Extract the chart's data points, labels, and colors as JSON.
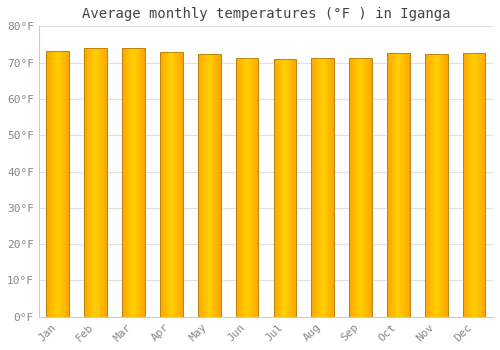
{
  "title": "Average monthly temperatures (°F ) in Iganga",
  "categories": [
    "Jan",
    "Feb",
    "Mar",
    "Apr",
    "May",
    "Jun",
    "Jul",
    "Aug",
    "Sep",
    "Oct",
    "Nov",
    "Dec"
  ],
  "values": [
    73.2,
    73.9,
    73.9,
    73.0,
    72.3,
    71.2,
    71.1,
    71.3,
    71.2,
    72.7,
    72.5,
    72.7
  ],
  "ylim": [
    0,
    80
  ],
  "yticks": [
    0,
    10,
    20,
    30,
    40,
    50,
    60,
    70,
    80
  ],
  "ytick_labels": [
    "0°F",
    "10°F",
    "20°F",
    "30°F",
    "40°F",
    "50°F",
    "60°F",
    "70°F",
    "80°F"
  ],
  "bar_color_left": "#FFA500",
  "bar_color_center": "#FFD000",
  "background_color": "#FFFFFF",
  "grid_color": "#E0E0E0",
  "title_fontsize": 10,
  "tick_fontsize": 8,
  "font_family": "monospace",
  "bar_edge_color": "#B8860B",
  "bar_width": 0.6
}
